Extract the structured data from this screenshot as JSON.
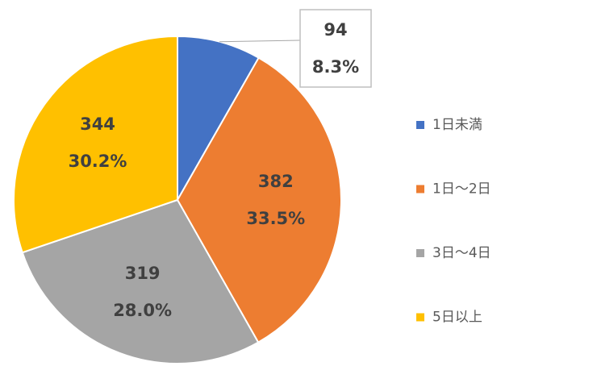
{
  "chart_data": {
    "type": "pie",
    "categories": [
      "1日未満",
      "1日～2日",
      "3日～4日",
      "5日以上"
    ],
    "values": [
      94,
      382,
      319,
      344
    ],
    "percentages": [
      8.3,
      33.5,
      28.0,
      30.2
    ],
    "percent_labels": [
      "8.3%",
      "33.5%",
      "28.0%",
      "30.2%"
    ],
    "colors": [
      "#4472c4",
      "#ed7d31",
      "#a5a5a5",
      "#ffc000"
    ],
    "legend": "right"
  }
}
